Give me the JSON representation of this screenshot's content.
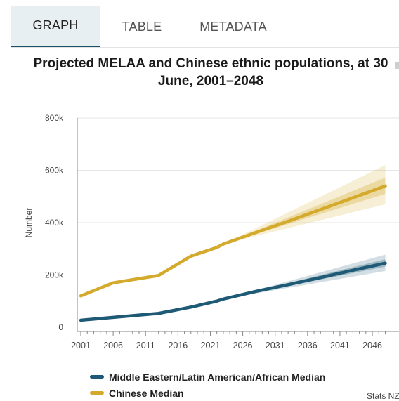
{
  "tabs": [
    {
      "label": "GRAPH",
      "active": true
    },
    {
      "label": "TABLE",
      "active": false
    },
    {
      "label": "METADATA",
      "active": false
    }
  ],
  "credit": "Stats NZ",
  "colors": {
    "melaa": "#1e5a75",
    "chinese": "#d4aa2c",
    "grid": "#e6e6e6",
    "axis": "#444444"
  },
  "chart_data": {
    "type": "line",
    "title": "Projected MELAA and Chinese ethnic populations, at 30 June, 2001–2048",
    "xlabel": "",
    "ylabel": "Number",
    "xlim": [
      2001,
      2048
    ],
    "ylim": [
      0,
      800000
    ],
    "x_ticks": [
      2001,
      2006,
      2011,
      2016,
      2021,
      2026,
      2031,
      2036,
      2041,
      2046
    ],
    "x_tick_labels": [
      "2001",
      "2006",
      "2011",
      "2016",
      "2021",
      "2026",
      "2031",
      "2036",
      "2041",
      "2046"
    ],
    "y_ticks": [
      0,
      200000,
      400000,
      600000,
      800000
    ],
    "y_tick_labels": [
      "0",
      "200k",
      "400k",
      "600k",
      "800k"
    ],
    "grid": true,
    "legend_position": "bottom-left",
    "projection_start": 2023,
    "series": [
      {
        "name": "Middle Eastern/Latin American/African Median",
        "color": "#1e5a75",
        "x": [
          2001,
          2006,
          2013,
          2018,
          2022,
          2023,
          2028,
          2033,
          2038,
          2043,
          2048
        ],
        "values": [
          27000,
          38000,
          53000,
          77000,
          100000,
          108000,
          137000,
          163000,
          190000,
          218000,
          245000
        ],
        "band_outer": {
          "x": [
            2023,
            2048
          ],
          "lower": [
            108000,
            215000
          ],
          "upper": [
            108000,
            278000
          ]
        },
        "band_inner": {
          "x": [
            2023,
            2048
          ],
          "lower": [
            108000,
            232000
          ],
          "upper": [
            108000,
            260000
          ]
        }
      },
      {
        "name": "Chinese Median",
        "color": "#d4aa2c",
        "x": [
          2001,
          2006,
          2013,
          2018,
          2022,
          2023,
          2028,
          2033,
          2038,
          2043,
          2048
        ],
        "values": [
          120000,
          170000,
          198000,
          272000,
          305000,
          318000,
          362000,
          405000,
          450000,
          495000,
          540000
        ],
        "band_outer": {
          "x": [
            2023,
            2048
          ],
          "lower": [
            318000,
            470000
          ],
          "upper": [
            318000,
            620000
          ]
        },
        "band_inner": {
          "x": [
            2023,
            2048
          ],
          "lower": [
            318000,
            510000
          ],
          "upper": [
            318000,
            572000
          ]
        }
      }
    ]
  }
}
